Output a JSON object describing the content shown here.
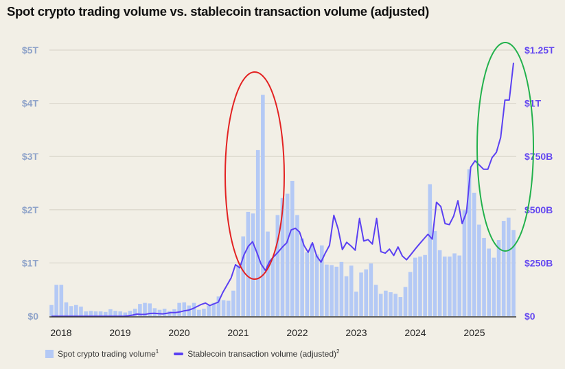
{
  "title": "Spot crypto trading volume vs. stablecoin transaction volume (adjusted)",
  "chart_data": {
    "type": "bar+line",
    "title": "Spot crypto trading volume vs. stablecoin transaction volume (adjusted)",
    "x_tick_labels": [
      "2018",
      "2019",
      "2020",
      "2021",
      "2022",
      "2023",
      "2024",
      "2025"
    ],
    "left_axis": {
      "label": "Spot crypto trading volume",
      "ticks": [
        "$0",
        "$1T",
        "$2T",
        "$3T",
        "$4T",
        "$5T"
      ],
      "range_trillions": [
        0,
        5
      ]
    },
    "right_axis": {
      "label": "Stablecoin transaction volume (adjusted)",
      "ticks": [
        "$0",
        "$250B",
        "$500B",
        "$750B",
        "$1T",
        "$1.25T"
      ],
      "range_billions": [
        0,
        1250
      ]
    },
    "grid": true,
    "legend_position": "bottom-left",
    "series": [
      {
        "name": "Spot crypto trading volume",
        "superscript": "1",
        "type": "bar",
        "unit": "trillions USD",
        "color": "#b4c9f5",
        "values": [
          0.21,
          0.59,
          0.59,
          0.26,
          0.19,
          0.21,
          0.18,
          0.09,
          0.1,
          0.09,
          0.09,
          0.08,
          0.13,
          0.1,
          0.09,
          0.07,
          0.1,
          0.14,
          0.23,
          0.25,
          0.24,
          0.15,
          0.12,
          0.14,
          0.1,
          0.13,
          0.25,
          0.26,
          0.2,
          0.25,
          0.12,
          0.14,
          0.2,
          0.25,
          0.37,
          0.3,
          0.29,
          0.48,
          0.96,
          1.5,
          1.96,
          1.93,
          3.12,
          4.16,
          1.59,
          1.1,
          1.9,
          2.22,
          2.3,
          2.54,
          1.9,
          1.46,
          1.2,
          1.36,
          1.16,
          1.33,
          0.97,
          0.96,
          0.93,
          1.02,
          0.75,
          0.95,
          0.46,
          0.82,
          0.88,
          0.99,
          0.59,
          0.42,
          0.48,
          0.45,
          0.42,
          0.36,
          0.55,
          0.83,
          1.1,
          1.12,
          1.15,
          2.48,
          1.6,
          1.24,
          1.12,
          1.12,
          1.18,
          1.14,
          1.99,
          2.76,
          2.32,
          1.72,
          1.47,
          1.27,
          1.1,
          1.43,
          1.79,
          1.85,
          1.62
        ],
        "note": "monthly values, Dec 2017 through Oct 2025 (approx.)"
      },
      {
        "name": "Stablecoin transaction volume (adjusted)",
        "superscript": "2",
        "type": "line",
        "unit": "billions USD",
        "color": "#5a40f2",
        "values": [
          0,
          0,
          0,
          0,
          0,
          0,
          0,
          0,
          0,
          0,
          0,
          0,
          0,
          0,
          0,
          0,
          0,
          0,
          2,
          5,
          10,
          8,
          9,
          13,
          14,
          12,
          11,
          14,
          17,
          17,
          20,
          25,
          28,
          35,
          45,
          55,
          62,
          50,
          58,
          66,
          110,
          145,
          180,
          242,
          227,
          288,
          328,
          350,
          300,
          245,
          215,
          258,
          280,
          302,
          325,
          345,
          405,
          413,
          395,
          333,
          300,
          345,
          282,
          254,
          296,
          333,
          474,
          410,
          313,
          347,
          330,
          310,
          459,
          353,
          360,
          339,
          459,
          303,
          296,
          315,
          285,
          325,
          283,
          265,
          289,
          315,
          339,
          362,
          385,
          362,
          535,
          515,
          435,
          430,
          470,
          542,
          435,
          488,
          700,
          730,
          710,
          690,
          690,
          745,
          770,
          840,
          1015,
          1015,
          1190
        ],
        "note": "values read from right axis (approx.)"
      }
    ],
    "annotations": [
      {
        "shape": "ellipse",
        "color": "#e32222",
        "around": "2021 spot volume spike"
      },
      {
        "shape": "ellipse",
        "color": "#22b14c",
        "around": "2025 stablecoin volume rise"
      }
    ]
  },
  "legend": {
    "bar_label": "Spot crypto trading volume",
    "bar_sup": "1",
    "line_label": "Stablecoin transaction volume (adjusted)",
    "line_sup": "2"
  }
}
